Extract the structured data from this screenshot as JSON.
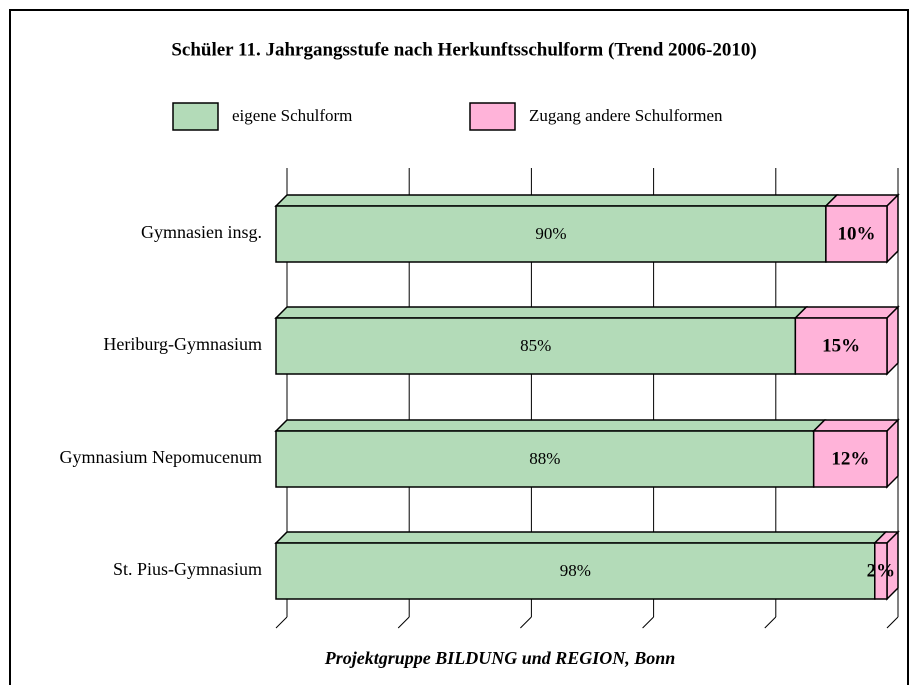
{
  "chart_data": {
    "type": "bar",
    "orientation": "horizontal",
    "stacked": true,
    "title": "Schüler 11. Jahrgangsstufe nach Herkunftsschulform (Trend 2006-2010)",
    "categories": [
      "Gymnasien insg.",
      "Heriburg-Gymnasium",
      "Gymnasium Nepomucenum",
      "St. Pius-Gymnasium"
    ],
    "series": [
      {
        "name": "eigene Schulform",
        "color": "#b3dbb8",
        "values": [
          90,
          85,
          88,
          98
        ],
        "value_labels": [
          "90%",
          "85%",
          "88%",
          "98%"
        ]
      },
      {
        "name": "Zugang andere Schulformen",
        "color": "#ffb3d9",
        "values": [
          10,
          15,
          12,
          2
        ],
        "value_labels": [
          "10%",
          "15%",
          "12%",
          "2%"
        ]
      }
    ],
    "xlim": [
      0,
      100
    ],
    "xticks": [
      0,
      20,
      40,
      60,
      80,
      100
    ],
    "grid": true,
    "source": "Projektgruppe BILDUNG und REGION, Bonn"
  }
}
